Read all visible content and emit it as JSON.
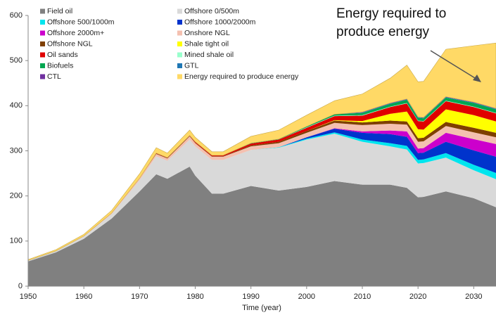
{
  "chart_data": {
    "type": "stacked_area",
    "x_label": "Time (year)",
    "annotation": [
      "Energy required to",
      "produce energy"
    ],
    "x": [
      1950,
      1955,
      1960,
      1965,
      1970,
      1973,
      1975,
      1979,
      1980,
      1983,
      1985,
      1990,
      1995,
      2000,
      2005,
      2010,
      2015,
      2018,
      2020,
      2021,
      2025,
      2030,
      2034
    ],
    "series": [
      {
        "name": "Field oil",
        "color": "#808080",
        "values": [
          55,
          75,
          105,
          150,
          210,
          248,
          238,
          265,
          245,
          205,
          205,
          222,
          212,
          220,
          233,
          225,
          225,
          218,
          197,
          198,
          210,
          195,
          175
        ]
      },
      {
        "name": "Offshore 0/500m",
        "color": "#d9d9d9",
        "values": [
          2,
          3,
          5,
          10,
          25,
          40,
          40,
          60,
          65,
          75,
          75,
          80,
          95,
          105,
          105,
          95,
          85,
          85,
          75,
          75,
          75,
          62,
          62
        ]
      },
      {
        "name": "Offshore 500/1000m",
        "color": "#00e5ee",
        "values": [
          0,
          0,
          0,
          0,
          0,
          0,
          0,
          0,
          0,
          0,
          0,
          0,
          1,
          2,
          3,
          5,
          7,
          8,
          8,
          8,
          10,
          12,
          14
        ]
      },
      {
        "name": "Offshore 1000/2000m",
        "color": "#0033cc",
        "values": [
          0,
          0,
          0,
          0,
          0,
          0,
          0,
          0,
          0,
          0,
          0,
          0,
          0,
          3,
          8,
          15,
          20,
          20,
          15,
          15,
          25,
          32,
          36
        ]
      },
      {
        "name": "Offshore 2000m+",
        "color": "#cc00cc",
        "values": [
          0,
          0,
          0,
          0,
          0,
          0,
          0,
          0,
          0,
          0,
          0,
          0,
          0,
          0,
          1,
          3,
          8,
          12,
          10,
          10,
          20,
          25,
          28
        ]
      },
      {
        "name": "Onshore NGL",
        "color": "#f4c0b0",
        "values": [
          0,
          0,
          1,
          2,
          4,
          5,
          5,
          7,
          7,
          7,
          7,
          8,
          9,
          10,
          12,
          14,
          15,
          15,
          15,
          15,
          15,
          15,
          15
        ]
      },
      {
        "name": "Offshore NGL",
        "color": "#7f3f00",
        "values": [
          0,
          0,
          0,
          0,
          0,
          1,
          1,
          1,
          1,
          1,
          1,
          2,
          3,
          4,
          5,
          6,
          7,
          7,
          8,
          8,
          9,
          10,
          10
        ]
      },
      {
        "name": "Shale tight oil",
        "color": "#ffff00",
        "values": [
          0,
          0,
          0,
          0,
          0,
          0,
          0,
          0,
          0,
          0,
          0,
          0,
          0,
          0,
          1,
          3,
          15,
          22,
          20,
          18,
          28,
          28,
          25
        ]
      },
      {
        "name": "Oil sands",
        "color": "#e00000",
        "values": [
          0,
          0,
          0,
          0,
          0,
          1,
          1,
          1,
          2,
          2,
          2,
          4,
          5,
          7,
          9,
          12,
          15,
          18,
          18,
          18,
          18,
          18,
          18
        ]
      },
      {
        "name": "Mined shale oil",
        "color": "#99ffcc",
        "values": [
          0,
          0,
          0,
          0,
          0,
          0,
          0,
          0,
          0,
          0,
          0,
          0,
          0,
          1,
          1,
          1,
          1,
          1,
          1,
          1,
          1,
          1,
          1
        ]
      },
      {
        "name": "Biofuels",
        "color": "#00a650",
        "values": [
          0,
          0,
          0,
          0,
          0,
          0,
          0,
          0,
          0,
          0,
          0,
          1,
          1,
          2,
          3,
          5,
          6,
          7,
          6,
          6,
          7,
          8,
          8
        ]
      },
      {
        "name": "GTL",
        "color": "#1f77b4",
        "values": [
          0,
          0,
          0,
          0,
          0,
          0,
          0,
          0,
          0,
          0,
          0,
          0,
          0,
          0,
          0,
          1,
          1,
          1,
          1,
          1,
          1,
          1,
          1
        ]
      },
      {
        "name": "CTL",
        "color": "#7030a0",
        "values": [
          0,
          0,
          0,
          0,
          0,
          0,
          0,
          0,
          0,
          0,
          0,
          0,
          0,
          0,
          0,
          1,
          1,
          1,
          1,
          1,
          1,
          1,
          1
        ]
      },
      {
        "name": "Energy required to produce energy",
        "color": "#ffd966",
        "values": [
          2,
          3,
          4,
          6,
          10,
          12,
          10,
          12,
          10,
          8,
          8,
          15,
          20,
          25,
          30,
          40,
          55,
          75,
          78,
          80,
          105,
          125,
          145
        ]
      }
    ],
    "xlim": [
      1950,
      2034
    ],
    "ylim": [
      0,
      600
    ],
    "xticks": [
      1950,
      1960,
      1970,
      1980,
      1990,
      2000,
      2010,
      2020,
      2030
    ],
    "yticks": [
      0,
      100,
      200,
      300,
      400,
      500,
      600
    ]
  }
}
